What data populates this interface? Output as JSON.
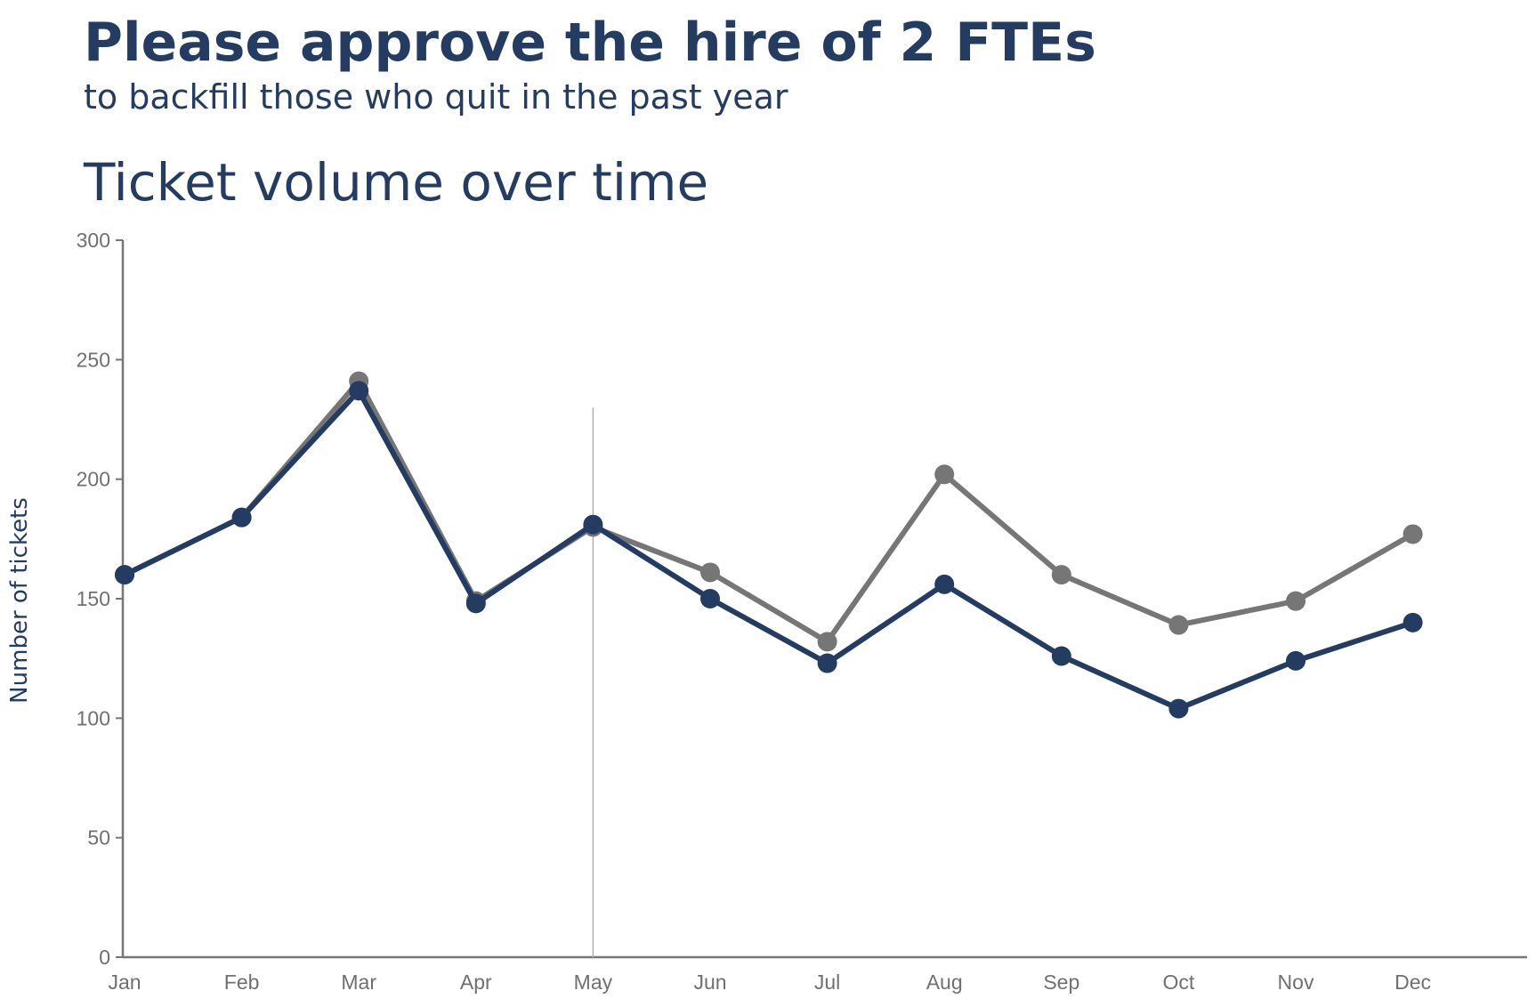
{
  "header": {
    "headline": "Please approve the hire of 2 FTEs",
    "subheadline": "to backfill those who quit in the past year"
  },
  "chart_data": {
    "type": "line",
    "title": "Ticket volume over time",
    "xlabel": "",
    "ylabel": "Number of tickets",
    "categories": [
      "Jan",
      "Feb",
      "Mar",
      "Apr",
      "May",
      "Jun",
      "Jul",
      "Aug",
      "Sep",
      "Oct",
      "Nov",
      "Dec"
    ],
    "ylim": [
      0,
      300
    ],
    "yticks": [
      0,
      50,
      100,
      150,
      200,
      250,
      300
    ],
    "grid": false,
    "legend": "none",
    "reference_line_at": "May",
    "series": [
      {
        "values": [
          160,
          184,
          241,
          149,
          180,
          161,
          132,
          202,
          160,
          139,
          149,
          177
        ],
        "color": "#767676"
      },
      {
        "values": [
          160,
          184,
          237,
          148,
          181,
          150,
          123,
          156,
          126,
          104,
          124,
          140
        ],
        "color": "#253c62"
      }
    ],
    "colors": {
      "axis": "#767676",
      "tick_text": "#707070",
      "reference_line": "#b0b0b0"
    }
  }
}
